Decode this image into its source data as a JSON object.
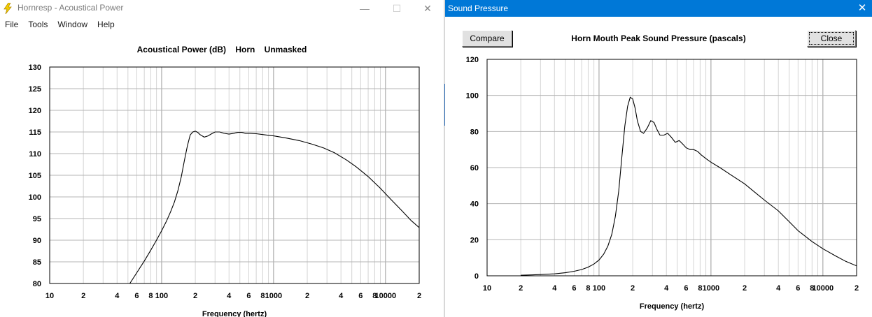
{
  "window1": {
    "title": "Hornresp - Acoustical Power",
    "controls": {
      "minimize": "—",
      "maximize": "☐",
      "close": "✕"
    },
    "menu": [
      "File",
      "Tools",
      "Window",
      "Help"
    ],
    "chart_title": "Acoustical Power (dB)    Horn    Unmasked"
  },
  "window2": {
    "title": "Sound Pressure",
    "close_glyph": "✕",
    "compare_label": "Compare",
    "close_label": "Close",
    "chart_title": "Horn Mouth Peak Sound Pressure (pascals)"
  },
  "chart_data": [
    {
      "type": "line",
      "title": "Acoustical Power (dB)    Horn    Unmasked",
      "xlabel": "Frequency (hertz)",
      "ylabel": "",
      "xscale": "log",
      "xlim": [
        10,
        20000
      ],
      "ylim": [
        80,
        130
      ],
      "grid": true,
      "x_tick_labels": [
        {
          "v": 10,
          "t": "10"
        },
        {
          "v": 20,
          "t": "2"
        },
        {
          "v": 40,
          "t": "4"
        },
        {
          "v": 60,
          "t": "6"
        },
        {
          "v": 80,
          "t": "8"
        },
        {
          "v": 100,
          "t": "100"
        },
        {
          "v": 200,
          "t": "2"
        },
        {
          "v": 400,
          "t": "4"
        },
        {
          "v": 600,
          "t": "6"
        },
        {
          "v": 800,
          "t": "8"
        },
        {
          "v": 1000,
          "t": "1000"
        },
        {
          "v": 2000,
          "t": "2"
        },
        {
          "v": 4000,
          "t": "4"
        },
        {
          "v": 6000,
          "t": "6"
        },
        {
          "v": 8000,
          "t": "8"
        },
        {
          "v": 10000,
          "t": "10000"
        },
        {
          "v": 20000,
          "t": "2"
        }
      ],
      "y_ticks": [
        80,
        85,
        90,
        95,
        100,
        105,
        110,
        115,
        120,
        125,
        130
      ],
      "x": [
        52,
        60,
        70,
        80,
        90,
        100,
        110,
        120,
        130,
        140,
        150,
        160,
        170,
        180,
        190,
        200,
        210,
        220,
        240,
        260,
        280,
        300,
        330,
        360,
        400,
        440,
        480,
        520,
        560,
        620,
        700,
        800,
        1000,
        1300,
        1700,
        2200,
        2800,
        3500,
        4500,
        5500,
        7000,
        9000,
        11000,
        14000,
        17000,
        20000
      ],
      "y": [
        80,
        82.5,
        85.2,
        87.7,
        90,
        92.2,
        94.3,
        96.5,
        98.8,
        101.5,
        104.7,
        108.5,
        111.8,
        114.3,
        115.0,
        115.2,
        114.9,
        114.4,
        113.8,
        114.1,
        114.6,
        115.0,
        115.0,
        114.7,
        114.5,
        114.7,
        114.9,
        114.9,
        114.7,
        114.7,
        114.6,
        114.4,
        114.1,
        113.6,
        113.0,
        112.2,
        111.3,
        110.2,
        108.5,
        106.9,
        104.7,
        102.0,
        99.6,
        96.8,
        94.5,
        92.9
      ]
    },
    {
      "type": "line",
      "title": "Horn Mouth Peak Sound Pressure (pascals)",
      "xlabel": "Frequency (hertz)",
      "ylabel": "",
      "xscale": "log",
      "xlim": [
        10,
        20000
      ],
      "ylim": [
        0,
        120
      ],
      "grid": true,
      "x_tick_labels": [
        {
          "v": 10,
          "t": "10"
        },
        {
          "v": 20,
          "t": "2"
        },
        {
          "v": 40,
          "t": "4"
        },
        {
          "v": 60,
          "t": "6"
        },
        {
          "v": 80,
          "t": "8"
        },
        {
          "v": 100,
          "t": "100"
        },
        {
          "v": 200,
          "t": "2"
        },
        {
          "v": 400,
          "t": "4"
        },
        {
          "v": 600,
          "t": "6"
        },
        {
          "v": 800,
          "t": "8"
        },
        {
          "v": 1000,
          "t": "1000"
        },
        {
          "v": 2000,
          "t": "2"
        },
        {
          "v": 4000,
          "t": "4"
        },
        {
          "v": 6000,
          "t": "6"
        },
        {
          "v": 8000,
          "t": "8"
        },
        {
          "v": 10000,
          "t": "10000"
        },
        {
          "v": 20000,
          "t": "2"
        }
      ],
      "y_ticks": [
        0,
        20,
        40,
        60,
        80,
        100,
        120
      ],
      "x": [
        20,
        25,
        30,
        40,
        50,
        60,
        70,
        80,
        90,
        100,
        110,
        120,
        130,
        140,
        150,
        160,
        170,
        180,
        190,
        200,
        210,
        220,
        235,
        250,
        270,
        290,
        310,
        330,
        350,
        380,
        410,
        440,
        480,
        520,
        560,
        600,
        650,
        700,
        760,
        820,
        900,
        1000,
        1200,
        1500,
        2000,
        2500,
        3000,
        4000,
        5000,
        6000,
        8000,
        10000,
        13000,
        16000,
        20000
      ],
      "y": [
        0.3,
        0.5,
        0.7,
        1.1,
        1.7,
        2.5,
        3.5,
        4.8,
        6.5,
        8.8,
        12,
        16.5,
        23,
        33,
        47,
        66,
        83,
        94,
        99,
        98,
        93,
        86,
        80,
        79,
        82,
        86,
        85,
        81,
        78,
        78,
        79,
        77,
        74,
        75,
        73,
        71,
        70,
        70,
        69,
        67,
        65,
        63,
        60,
        56,
        51,
        46,
        42,
        36,
        30,
        25,
        19,
        15,
        11,
        8,
        5.5
      ]
    }
  ]
}
